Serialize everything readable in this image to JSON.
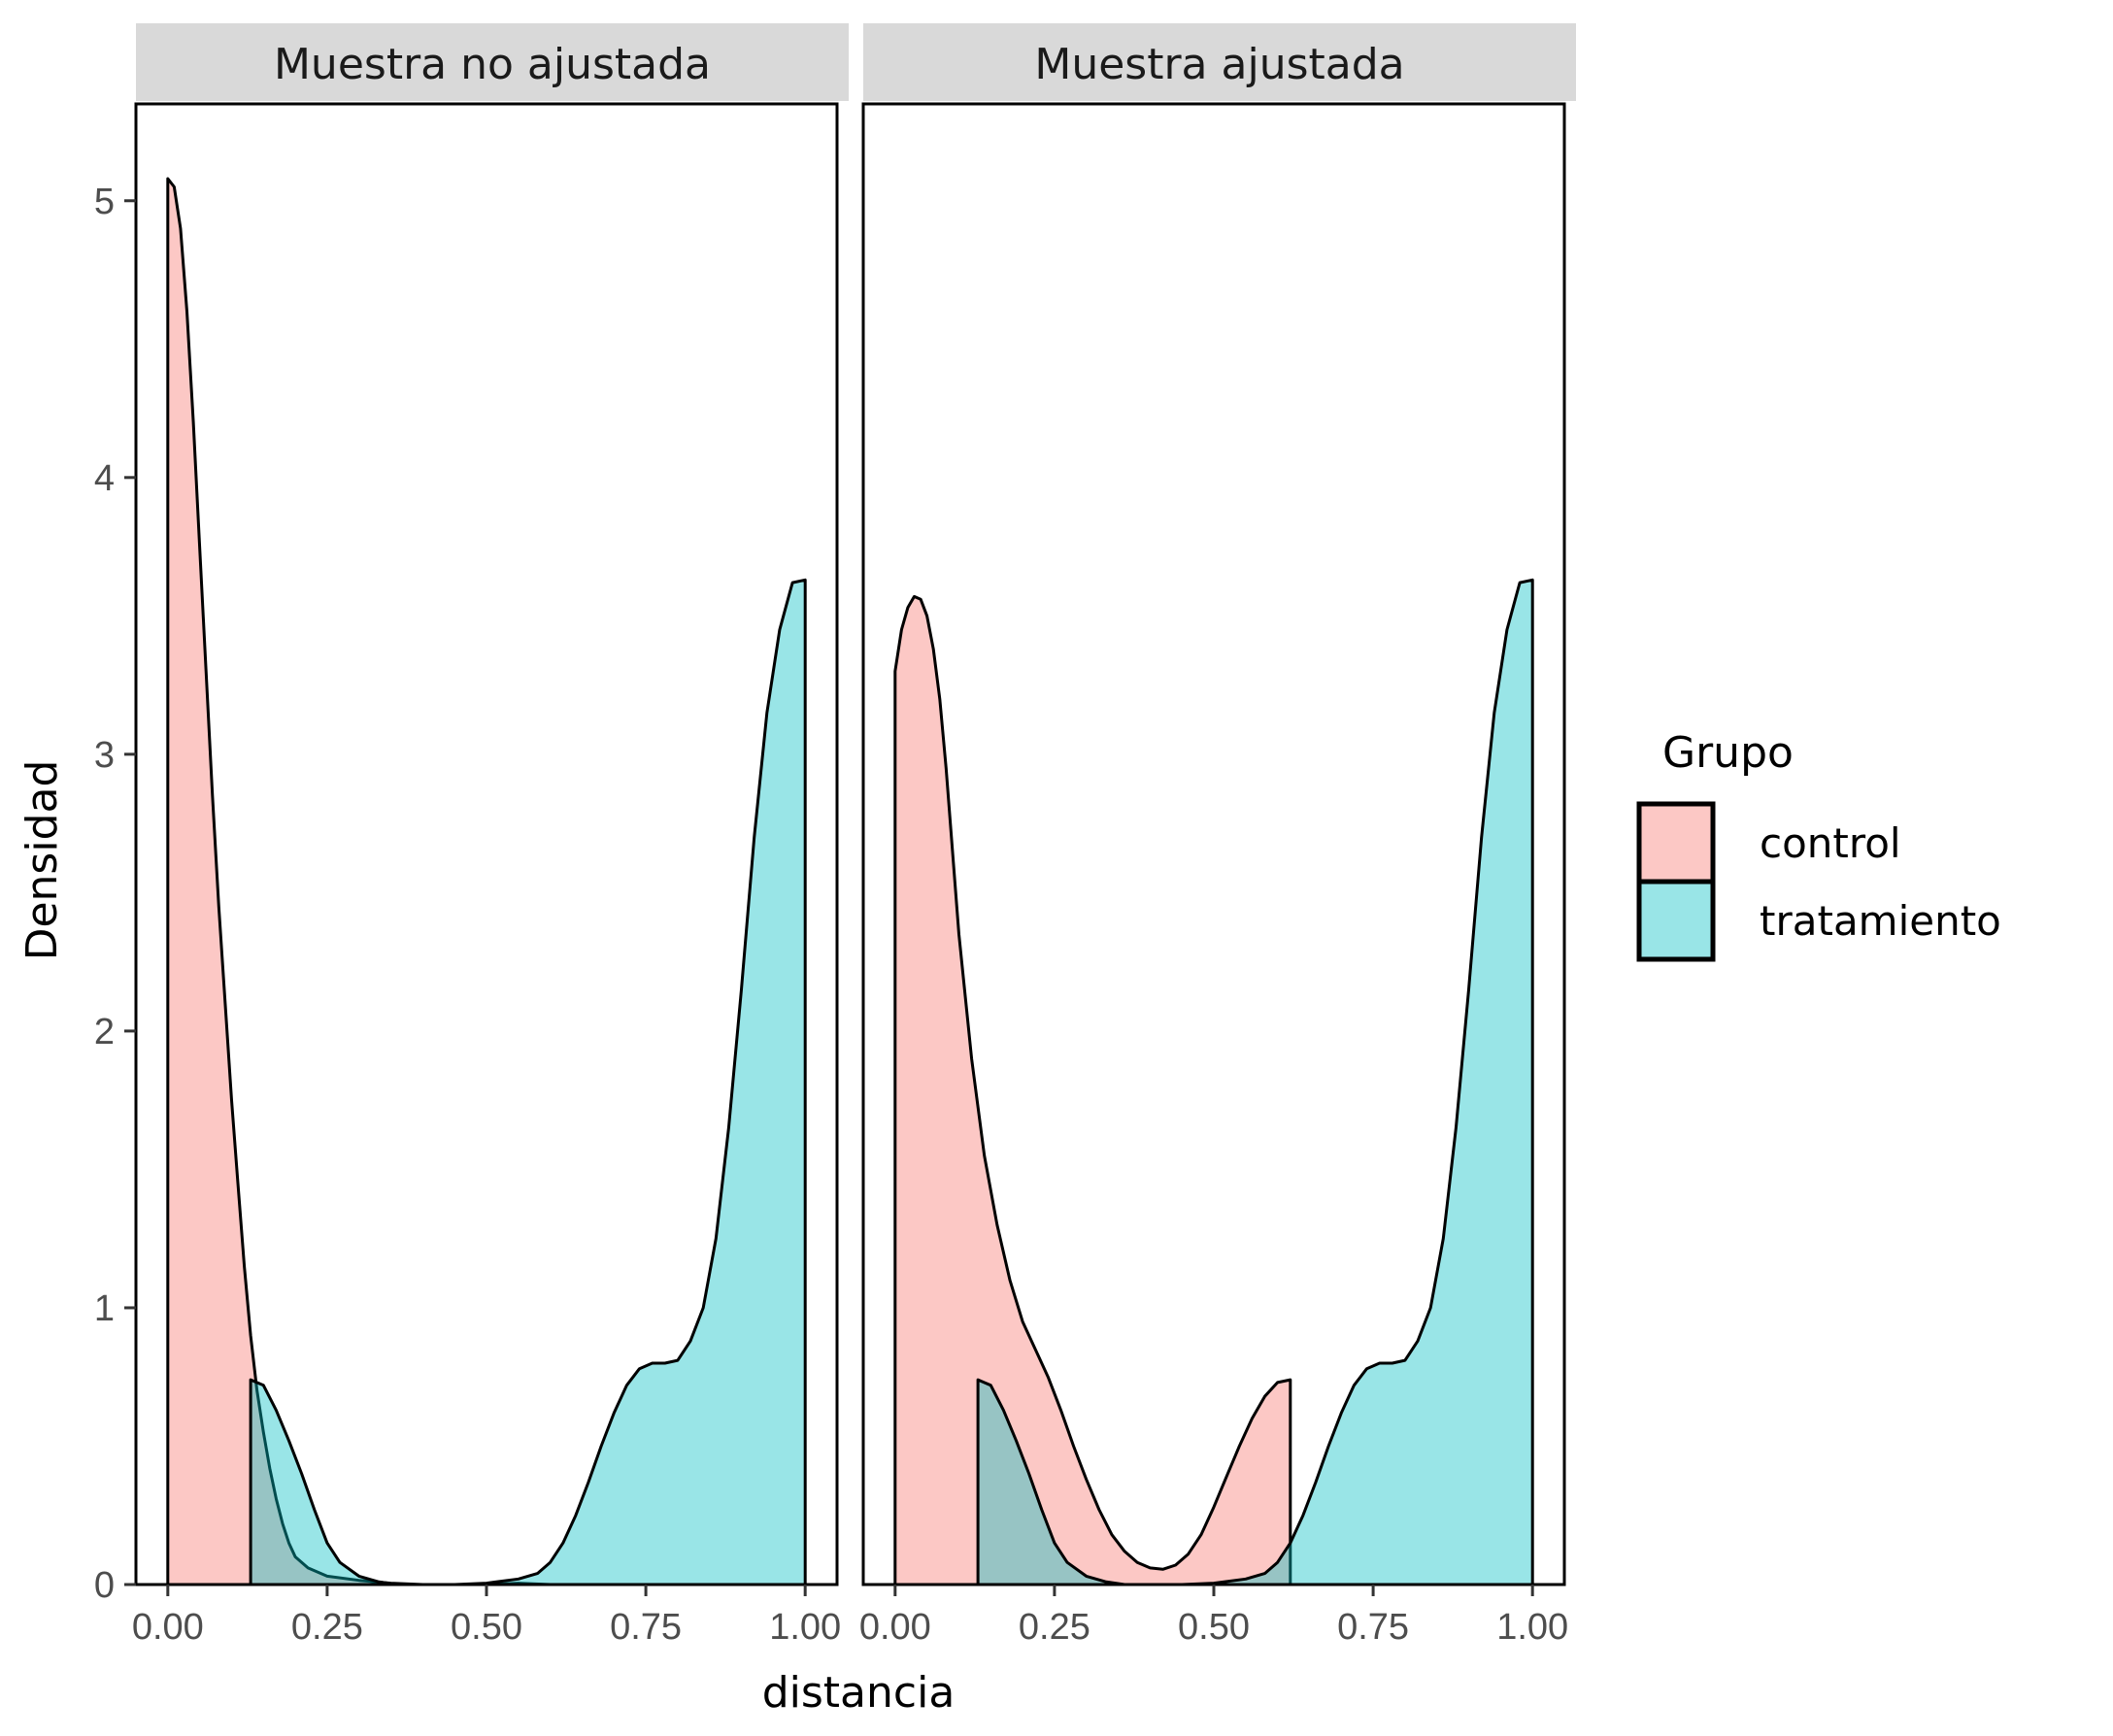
{
  "chart_data": {
    "type": "area",
    "subtype": "density",
    "xlabel": "distancia",
    "ylabel": "Densidad",
    "xlim": [
      -0.05,
      1.05
    ],
    "ylim": [
      0,
      5.35
    ],
    "x_ticks": [
      0,
      0.25,
      0.5,
      0.75,
      1.0
    ],
    "x_tick_labels": [
      "0.00",
      "0.25",
      "0.50",
      "0.75",
      "1.00"
    ],
    "y_ticks": [
      0,
      1,
      2,
      3,
      4,
      5
    ],
    "y_tick_labels": [
      "0",
      "1",
      "2",
      "3",
      "4",
      "5"
    ],
    "grid": false,
    "legend": {
      "title": "Grupo",
      "position": "right",
      "entries": [
        {
          "label": "control",
          "color": "#F8766D"
        },
        {
          "label": "tratamiento",
          "color": "#00BFC4"
        }
      ]
    },
    "fill_opacity": 0.4,
    "panels": [
      {
        "title": "Muestra no ajustada",
        "series": [
          {
            "name": "control",
            "color": "#F8766D",
            "points": [
              [
                0,
                5.08
              ],
              [
                0.01,
                5.05
              ],
              [
                0.02,
                4.9
              ],
              [
                0.03,
                4.6
              ],
              [
                0.04,
                4.2
              ],
              [
                0.05,
                3.75
              ],
              [
                0.06,
                3.3
              ],
              [
                0.07,
                2.85
              ],
              [
                0.08,
                2.45
              ],
              [
                0.09,
                2.1
              ],
              [
                0.1,
                1.75
              ],
              [
                0.11,
                1.45
              ],
              [
                0.12,
                1.15
              ],
              [
                0.13,
                0.9
              ],
              [
                0.14,
                0.7
              ],
              [
                0.15,
                0.55
              ],
              [
                0.16,
                0.42
              ],
              [
                0.17,
                0.31
              ],
              [
                0.18,
                0.22
              ],
              [
                0.19,
                0.15
              ],
              [
                0.2,
                0.1
              ],
              [
                0.22,
                0.06
              ],
              [
                0.25,
                0.03
              ],
              [
                0.3,
                0.015
              ],
              [
                0.35,
                0.005
              ],
              [
                0.4,
                0.0
              ],
              [
                0.45,
                0.0
              ],
              [
                0.5,
                0.0
              ],
              [
                0.55,
                0.005
              ],
              [
                0.6,
                0.0
              ]
            ]
          },
          {
            "name": "tratamiento",
            "color": "#00BFC4",
            "points": [
              [
                0.13,
                0.74
              ],
              [
                0.15,
                0.72
              ],
              [
                0.17,
                0.63
              ],
              [
                0.19,
                0.52
              ],
              [
                0.21,
                0.4
              ],
              [
                0.23,
                0.27
              ],
              [
                0.25,
                0.15
              ],
              [
                0.27,
                0.08
              ],
              [
                0.3,
                0.03
              ],
              [
                0.33,
                0.01
              ],
              [
                0.36,
                0.0
              ],
              [
                0.45,
                0.0
              ],
              [
                0.5,
                0.005
              ],
              [
                0.55,
                0.02
              ],
              [
                0.58,
                0.04
              ],
              [
                0.6,
                0.08
              ],
              [
                0.62,
                0.15
              ],
              [
                0.64,
                0.25
              ],
              [
                0.66,
                0.37
              ],
              [
                0.68,
                0.5
              ],
              [
                0.7,
                0.62
              ],
              [
                0.72,
                0.72
              ],
              [
                0.74,
                0.78
              ],
              [
                0.76,
                0.8
              ],
              [
                0.78,
                0.8
              ],
              [
                0.8,
                0.81
              ],
              [
                0.82,
                0.88
              ],
              [
                0.84,
                1.0
              ],
              [
                0.86,
                1.25
              ],
              [
                0.88,
                1.65
              ],
              [
                0.9,
                2.15
              ],
              [
                0.92,
                2.7
              ],
              [
                0.94,
                3.15
              ],
              [
                0.96,
                3.45
              ],
              [
                0.98,
                3.62
              ],
              [
                1.0,
                3.63
              ]
            ]
          }
        ]
      },
      {
        "title": "Muestra ajustada",
        "series": [
          {
            "name": "control",
            "color": "#F8766D",
            "points": [
              [
                0,
                3.3
              ],
              [
                0.01,
                3.45
              ],
              [
                0.02,
                3.53
              ],
              [
                0.03,
                3.57
              ],
              [
                0.04,
                3.56
              ],
              [
                0.05,
                3.5
              ],
              [
                0.06,
                3.38
              ],
              [
                0.07,
                3.2
              ],
              [
                0.08,
                2.95
              ],
              [
                0.09,
                2.65
              ],
              [
                0.1,
                2.35
              ],
              [
                0.12,
                1.9
              ],
              [
                0.14,
                1.55
              ],
              [
                0.16,
                1.3
              ],
              [
                0.18,
                1.1
              ],
              [
                0.2,
                0.95
              ],
              [
                0.22,
                0.85
              ],
              [
                0.24,
                0.75
              ],
              [
                0.26,
                0.63
              ],
              [
                0.28,
                0.5
              ],
              [
                0.3,
                0.38
              ],
              [
                0.32,
                0.27
              ],
              [
                0.34,
                0.18
              ],
              [
                0.36,
                0.12
              ],
              [
                0.38,
                0.08
              ],
              [
                0.4,
                0.06
              ],
              [
                0.42,
                0.055
              ],
              [
                0.44,
                0.07
              ],
              [
                0.46,
                0.11
              ],
              [
                0.48,
                0.18
              ],
              [
                0.5,
                0.28
              ],
              [
                0.52,
                0.39
              ],
              [
                0.54,
                0.5
              ],
              [
                0.56,
                0.6
              ],
              [
                0.58,
                0.68
              ],
              [
                0.6,
                0.73
              ],
              [
                0.62,
                0.74
              ]
            ]
          },
          {
            "name": "tratamiento",
            "color": "#00BFC4",
            "points": [
              [
                0.13,
                0.74
              ],
              [
                0.15,
                0.72
              ],
              [
                0.17,
                0.63
              ],
              [
                0.19,
                0.52
              ],
              [
                0.21,
                0.4
              ],
              [
                0.23,
                0.27
              ],
              [
                0.25,
                0.15
              ],
              [
                0.27,
                0.08
              ],
              [
                0.3,
                0.03
              ],
              [
                0.33,
                0.01
              ],
              [
                0.36,
                0.0
              ],
              [
                0.45,
                0.0
              ],
              [
                0.5,
                0.005
              ],
              [
                0.55,
                0.02
              ],
              [
                0.58,
                0.04
              ],
              [
                0.6,
                0.08
              ],
              [
                0.62,
                0.15
              ],
              [
                0.64,
                0.25
              ],
              [
                0.66,
                0.37
              ],
              [
                0.68,
                0.5
              ],
              [
                0.7,
                0.62
              ],
              [
                0.72,
                0.72
              ],
              [
                0.74,
                0.78
              ],
              [
                0.76,
                0.8
              ],
              [
                0.78,
                0.8
              ],
              [
                0.8,
                0.81
              ],
              [
                0.82,
                0.88
              ],
              [
                0.84,
                1.0
              ],
              [
                0.86,
                1.25
              ],
              [
                0.88,
                1.65
              ],
              [
                0.9,
                2.15
              ],
              [
                0.92,
                2.7
              ],
              [
                0.94,
                3.15
              ],
              [
                0.96,
                3.45
              ],
              [
                0.98,
                3.62
              ],
              [
                1.0,
                3.63
              ]
            ]
          }
        ]
      }
    ]
  }
}
